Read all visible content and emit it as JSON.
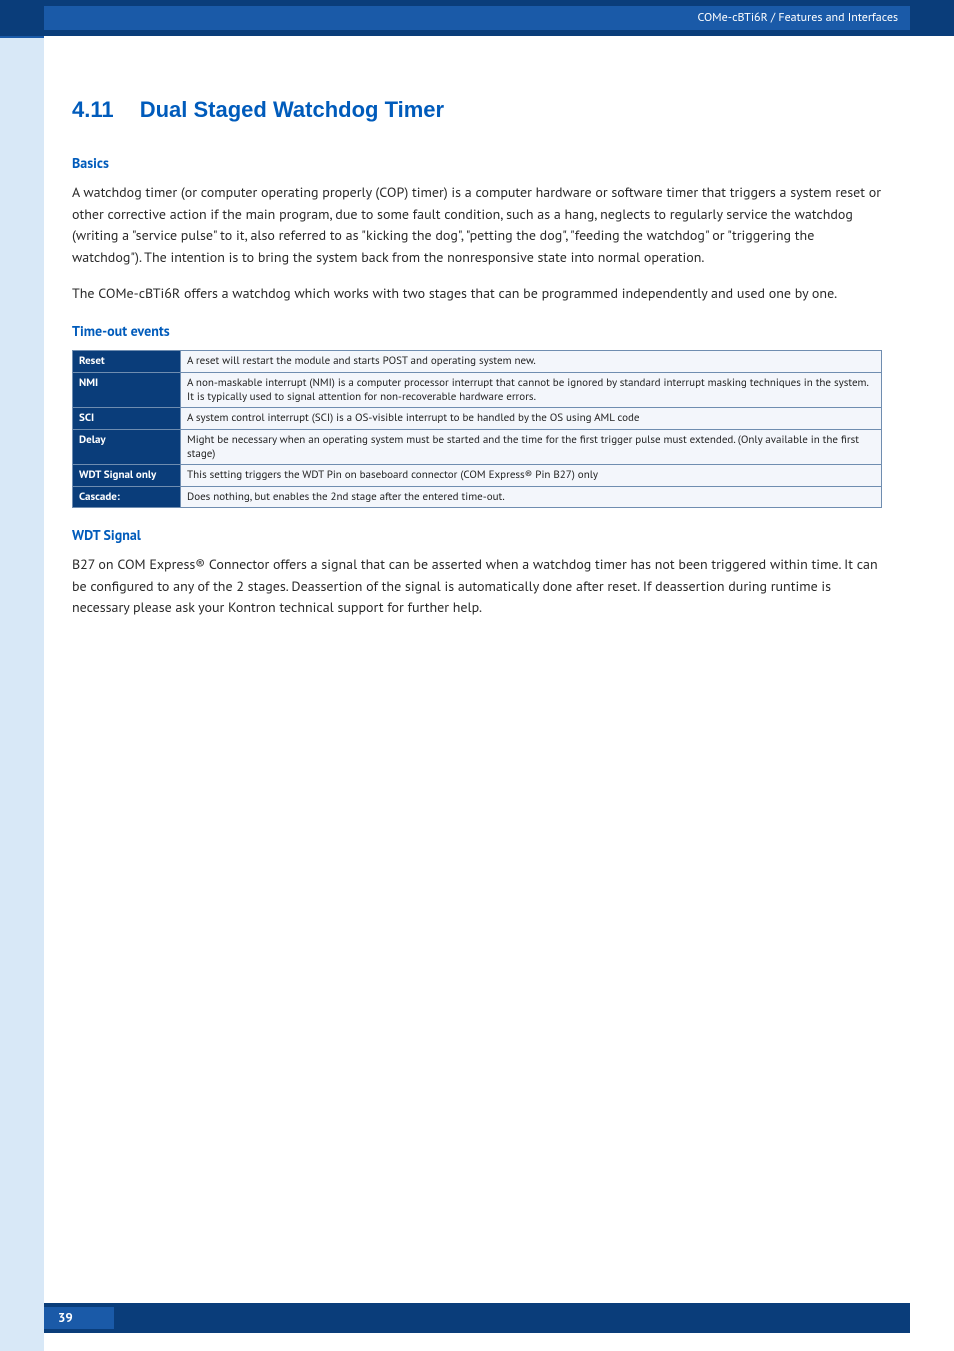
{
  "header": {
    "breadcrumb": "COMe-cBTi6R / Features and Interfaces"
  },
  "section": {
    "number": "4.11",
    "title": "Dual Staged Watchdog Timer"
  },
  "basics": {
    "heading": "Basics",
    "para1": "A watchdog timer (or computer operating properly (COP) timer) is a computer hardware or software timer that triggers a system reset or other corrective action if the main program, due to some fault condition, such as a hang, neglects to regularly service the watchdog (writing a \"service pulse\" to it, also referred to as \"kicking the dog\", \"petting the dog\", \"feeding the watchdog\" or \"triggering the watchdog\"). The intention is to bring the system back from the nonresponsive state into normal operation.",
    "para2": "The COMe-cBTi6R offers a watchdog which works with two stages that can be programmed independently and used one by one."
  },
  "timeout": {
    "heading": "Time-out events",
    "rows": [
      {
        "label": "Reset",
        "desc": "A reset will restart the module and starts POST and operating system new."
      },
      {
        "label": "NMI",
        "desc": "A non-maskable interrupt (NMI) is a computer processor interrupt that cannot be ignored by standard interrupt masking techniques in the system. It is typically used to signal attention for non-recoverable hardware errors."
      },
      {
        "label": "SCI",
        "desc": "A system control interrupt (SCI) is a OS-visible interrupt to be handled by the OS using AML code"
      },
      {
        "label": "Delay",
        "desc": "Might be necessary when an operating system must be started and the time for the first trigger pulse must extended. (Only available in the first stage)"
      },
      {
        "label": "WDT Signal only",
        "desc": "This setting triggers the WDT Pin on baseboard connector (COM Express® Pin B27) only"
      },
      {
        "label": "Cascade:",
        "desc": "Does nothing, but enables the 2nd stage after the entered time-out."
      }
    ]
  },
  "wdt": {
    "heading": "WDT Signal",
    "para": "B27 on COM Express® Connector offers a signal that can be asserted when a watchdog timer has not been triggered within time. It can be configured to any of the 2 stages. Deassertion of the signal is automatically done after reset. If deassertion during runtime is necessary please ask your Kontron technical support for further help."
  },
  "footer": {
    "page": "39"
  },
  "colors": {
    "brand_dark": "#0a3d7a",
    "brand_mid": "#1a5aa8",
    "brand_light": "#d8e8f7",
    "heading_blue": "#005bbb",
    "row_bg": "#f3f6fb",
    "border": "#6f8db0"
  }
}
